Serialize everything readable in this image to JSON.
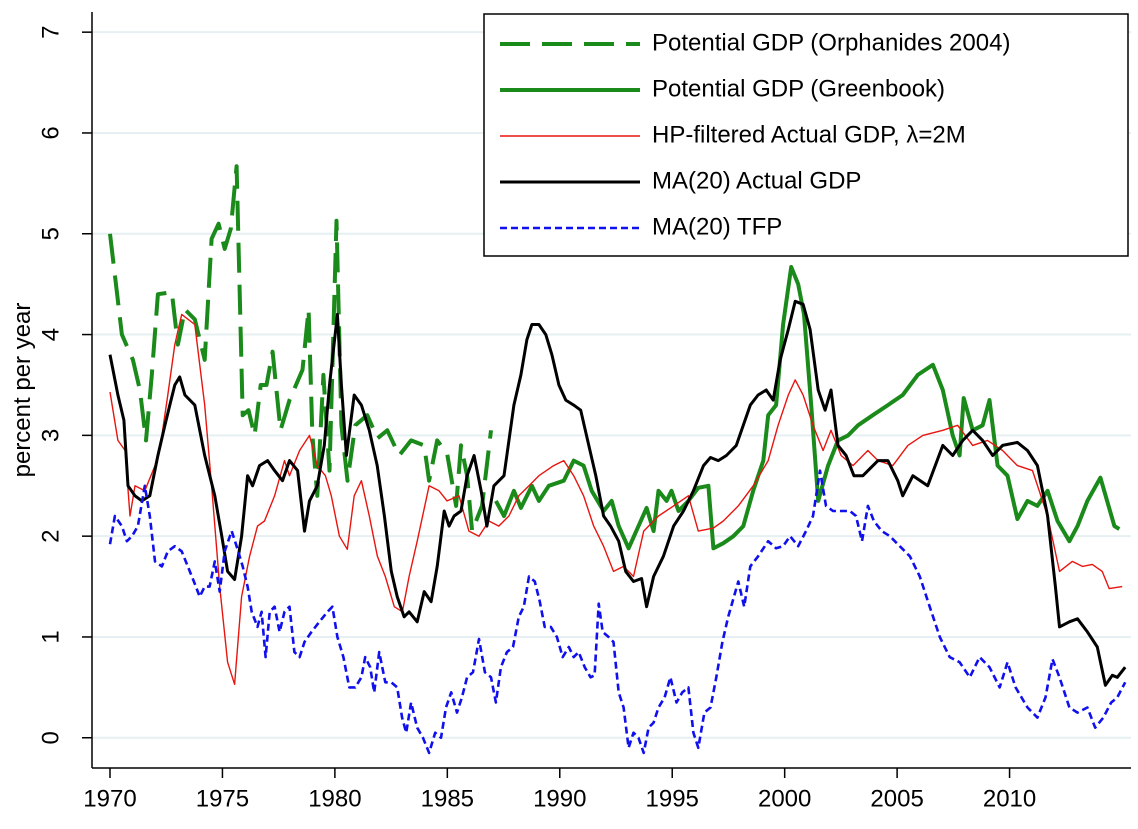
{
  "chart_data": {
    "type": "line",
    "y_label": "percent per year",
    "xlim": [
      1969.2,
      2015.4
    ],
    "xticks": [
      1970,
      1975,
      1980,
      1985,
      1990,
      1995,
      2000,
      2005,
      2010
    ],
    "ylim": [
      -0.3,
      7.2
    ],
    "yticks": [
      0,
      1,
      2,
      3,
      4,
      5,
      6,
      7
    ],
    "grid": true,
    "legend": "upper right",
    "series": [
      {
        "name": "Potential GDP (Orphanides 2004)",
        "color": "#1a8a1a",
        "x": [
          1970.0,
          1970.53,
          1971.02,
          1971.33,
          1971.6,
          1971.86,
          1972.13,
          1972.75,
          1973.02,
          1973.33,
          1973.77,
          1974.21,
          1974.52,
          1974.83,
          1975.1,
          1975.37,
          1975.63,
          1975.9,
          1976.16,
          1976.43,
          1976.7,
          1976.96,
          1977.23,
          1977.58,
          1977.98,
          1978.56,
          1978.83,
          1979.0,
          1979.22,
          1979.49,
          1979.76,
          1980.07,
          1980.29,
          1980.56,
          1980.91,
          1981.44,
          1981.89,
          1982.33,
          1982.86,
          1983.39,
          1983.97,
          1984.19,
          1984.55,
          1984.99,
          1985.39,
          1985.61,
          1985.88,
          1986.1,
          1986.54,
          1986.94
        ],
        "values": [
          5.0,
          4.0,
          3.75,
          3.45,
          2.95,
          3.6,
          4.4,
          4.42,
          3.9,
          4.25,
          4.15,
          3.75,
          4.95,
          5.1,
          4.85,
          5.05,
          5.67,
          3.2,
          3.25,
          3.0,
          3.5,
          3.5,
          3.83,
          3.05,
          3.35,
          3.65,
          4.25,
          3.0,
          2.4,
          3.6,
          2.65,
          5.13,
          3.1,
          2.55,
          3.1,
          3.2,
          2.97,
          3.05,
          2.8,
          2.95,
          2.9,
          2.55,
          2.95,
          2.82,
          2.3,
          2.9,
          2.6,
          2.05,
          2.3,
          3.05
        ]
      },
      {
        "name": "Potential GDP (Greenbook)",
        "color": "#1a8a1a",
        "x": [
          1987.16,
          1987.52,
          1987.96,
          1988.27,
          1988.76,
          1989.07,
          1989.51,
          1990.18,
          1990.62,
          1991.06,
          1991.42,
          1991.95,
          1992.31,
          1992.62,
          1993.06,
          1993.5,
          1993.86,
          1994.17,
          1994.39,
          1994.75,
          1994.97,
          1995.28,
          1995.72,
          1996.16,
          1996.61,
          1996.83,
          1997.27,
          1997.72,
          1998.16,
          1998.6,
          1999.05,
          1999.27,
          1999.62,
          1999.93,
          2000.29,
          2000.6,
          2000.86,
          2001.18,
          2001.49,
          2001.93,
          2002.37,
          2002.82,
          2003.26,
          2003.92,
          2004.59,
          2005.25,
          2005.92,
          2006.59,
          2007.03,
          2007.47,
          2007.78,
          2007.96,
          2008.36,
          2008.8,
          2009.11,
          2009.47,
          2009.91,
          2010.35,
          2010.8,
          2011.24,
          2011.69,
          2012.13,
          2012.66,
          2013.02,
          2013.46,
          2014.04,
          2014.66,
          2014.88
        ],
        "values": [
          2.35,
          2.2,
          2.45,
          2.28,
          2.5,
          2.35,
          2.5,
          2.55,
          2.75,
          2.7,
          2.45,
          2.25,
          2.35,
          2.1,
          1.88,
          2.1,
          2.28,
          2.05,
          2.45,
          2.35,
          2.45,
          2.25,
          2.35,
          2.48,
          2.5,
          1.88,
          1.93,
          2.0,
          2.1,
          2.45,
          2.75,
          3.2,
          3.3,
          4.1,
          4.67,
          4.5,
          4.2,
          3.3,
          2.35,
          2.7,
          2.95,
          3.0,
          3.1,
          3.2,
          3.3,
          3.4,
          3.6,
          3.7,
          3.45,
          3.0,
          2.8,
          3.37,
          3.05,
          3.1,
          3.35,
          2.7,
          2.6,
          2.17,
          2.35,
          2.3,
          2.45,
          2.15,
          1.95,
          2.1,
          2.35,
          2.58,
          2.1,
          2.07
        ]
      },
      {
        "name": "HP-filtered Actual GDP, λ=2M",
        "color": "#e8150f",
        "x": [
          1970.0,
          1970.35,
          1970.67,
          1970.89,
          1971.11,
          1971.55,
          1972.0,
          1972.31,
          1972.57,
          1972.88,
          1973.19,
          1973.77,
          1974.21,
          1974.52,
          1974.88,
          1975.23,
          1975.54,
          1975.85,
          1976.21,
          1976.56,
          1976.87,
          1977.32,
          1977.76,
          1977.98,
          1978.43,
          1978.87,
          1979.22,
          1979.58,
          1979.84,
          1980.2,
          1980.55,
          1980.86,
          1981.18,
          1981.53,
          1981.89,
          1982.24,
          1982.64,
          1983.0,
          1983.3,
          1983.66,
          1984.19,
          1984.63,
          1984.99,
          1985.52,
          1985.96,
          1986.41,
          1986.85,
          1987.29,
          1987.74,
          1988.18,
          1988.63,
          1989.07,
          1989.73,
          1990.18,
          1990.62,
          1991.06,
          1991.51,
          1991.95,
          1992.39,
          1992.84,
          1993.28,
          1993.73,
          1994.39,
          1995.06,
          1995.72,
          1996.16,
          1996.83,
          1997.27,
          1997.94,
          1998.6,
          1999.27,
          1999.71,
          2000.16,
          2000.47,
          2000.82,
          2001.26,
          2001.71,
          2002.06,
          2002.51,
          2003.04,
          2003.7,
          2004.15,
          2004.81,
          2005.48,
          2006.14,
          2007.03,
          2007.69,
          2008.36,
          2009.02,
          2009.69,
          2010.35,
          2011.02,
          2011.69,
          2012.22,
          2012.79,
          2013.24,
          2013.68,
          2014.12,
          2014.43,
          2015.01
        ],
        "values": [
          3.43,
          2.95,
          2.85,
          2.2,
          2.5,
          2.45,
          2.7,
          3.0,
          3.4,
          3.9,
          4.2,
          4.1,
          3.3,
          2.5,
          1.5,
          0.75,
          0.53,
          1.4,
          1.8,
          2.1,
          2.15,
          2.4,
          2.75,
          2.6,
          2.85,
          3.0,
          2.7,
          2.6,
          2.4,
          2.0,
          1.87,
          2.4,
          2.55,
          2.2,
          1.8,
          1.6,
          1.3,
          1.25,
          1.6,
          1.95,
          2.5,
          2.45,
          2.35,
          2.4,
          2.05,
          2.0,
          2.15,
          2.1,
          2.2,
          2.4,
          2.5,
          2.6,
          2.7,
          2.75,
          2.6,
          2.4,
          2.1,
          1.9,
          1.65,
          1.7,
          1.6,
          2.05,
          2.2,
          2.3,
          2.4,
          2.05,
          2.08,
          2.15,
          2.3,
          2.5,
          2.75,
          3.1,
          3.4,
          3.55,
          3.4,
          3.1,
          2.85,
          3.05,
          2.8,
          2.7,
          2.85,
          2.75,
          2.7,
          2.9,
          3.0,
          3.05,
          3.1,
          2.9,
          2.95,
          2.85,
          2.7,
          2.65,
          2.2,
          1.65,
          1.75,
          1.7,
          1.72,
          1.65,
          1.48,
          1.5
        ]
      },
      {
        "name": "MA(20) Actual GDP",
        "color": "#000000",
        "x": [
          1970.0,
          1970.35,
          1970.62,
          1970.8,
          1971.11,
          1971.42,
          1971.77,
          1972.13,
          1972.44,
          1972.66,
          1972.88,
          1973.1,
          1973.33,
          1973.77,
          1974.21,
          1974.66,
          1974.97,
          1975.23,
          1975.54,
          1975.85,
          1976.12,
          1976.34,
          1976.65,
          1977.01,
          1977.32,
          1977.67,
          1977.98,
          1978.34,
          1978.65,
          1978.87,
          1979.22,
          1979.53,
          1979.76,
          1980.11,
          1980.29,
          1980.51,
          1980.86,
          1981.18,
          1981.53,
          1981.88,
          1982.2,
          1982.51,
          1982.77,
          1983.08,
          1983.3,
          1983.66,
          1983.97,
          1984.28,
          1984.55,
          1984.86,
          1985.08,
          1985.3,
          1985.61,
          1985.88,
          1986.19,
          1986.5,
          1986.76,
          1987.07,
          1987.52,
          1987.96,
          1988.27,
          1988.54,
          1988.76,
          1989.07,
          1989.38,
          1989.65,
          1989.96,
          1990.27,
          1990.62,
          1990.93,
          1991.29,
          1991.6,
          1991.95,
          1992.26,
          1992.62,
          1992.93,
          1993.28,
          1993.64,
          1993.86,
          1994.17,
          1994.61,
          1995.06,
          1995.5,
          1995.94,
          1996.39,
          1996.7,
          1997.05,
          1997.41,
          1997.85,
          1998.16,
          1998.47,
          1998.82,
          1999.18,
          1999.49,
          1999.8,
          2000.16,
          2000.47,
          2000.82,
          2001.13,
          2001.49,
          2001.8,
          2002.06,
          2002.37,
          2002.73,
          2003.08,
          2003.48,
          2004.15,
          2004.59,
          2005.03,
          2005.25,
          2005.7,
          2006.36,
          2007.03,
          2007.47,
          2007.92,
          2008.36,
          2008.8,
          2009.25,
          2009.69,
          2010.35,
          2010.8,
          2011.24,
          2011.69,
          2012.04,
          2012.22,
          2012.66,
          2013.02,
          2013.46,
          2013.9,
          2014.26,
          2014.57,
          2014.79,
          2015.14
        ],
        "values": [
          3.8,
          3.4,
          3.15,
          2.5,
          2.4,
          2.35,
          2.4,
          2.8,
          3.1,
          3.3,
          3.5,
          3.58,
          3.4,
          3.3,
          2.8,
          2.4,
          2.0,
          1.65,
          1.57,
          2.0,
          2.6,
          2.5,
          2.7,
          2.75,
          2.65,
          2.55,
          2.75,
          2.65,
          2.05,
          2.35,
          2.5,
          2.9,
          3.5,
          4.2,
          3.5,
          2.8,
          3.4,
          3.3,
          3.05,
          2.7,
          2.2,
          1.65,
          1.4,
          1.2,
          1.25,
          1.15,
          1.45,
          1.35,
          1.7,
          2.25,
          2.1,
          2.2,
          2.25,
          2.6,
          2.8,
          2.45,
          2.1,
          2.5,
          2.6,
          3.3,
          3.6,
          3.95,
          4.1,
          4.1,
          4.0,
          3.8,
          3.5,
          3.35,
          3.3,
          3.25,
          2.9,
          2.6,
          2.2,
          2.1,
          1.95,
          1.65,
          1.55,
          1.58,
          1.3,
          1.6,
          1.8,
          2.1,
          2.25,
          2.45,
          2.7,
          2.78,
          2.75,
          2.8,
          2.9,
          3.1,
          3.3,
          3.4,
          3.45,
          3.35,
          3.75,
          4.05,
          4.33,
          4.3,
          4.05,
          3.45,
          3.25,
          3.45,
          2.9,
          2.8,
          2.6,
          2.6,
          2.75,
          2.75,
          2.55,
          2.4,
          2.6,
          2.5,
          2.9,
          2.8,
          2.95,
          3.05,
          2.95,
          2.8,
          2.9,
          2.93,
          2.85,
          2.7,
          2.2,
          1.5,
          1.1,
          1.15,
          1.18,
          1.05,
          0.9,
          0.52,
          0.62,
          0.6,
          0.7
        ]
      },
      {
        "name": "MA(20) TFP",
        "color": "#1010ee",
        "x": [
          1970.0,
          1970.22,
          1970.53,
          1970.75,
          1970.98,
          1971.24,
          1971.55,
          1971.77,
          1972.0,
          1972.31,
          1972.57,
          1972.88,
          1973.19,
          1973.46,
          1973.73,
          1973.99,
          1974.21,
          1974.43,
          1974.66,
          1974.88,
          1975.1,
          1975.41,
          1975.63,
          1975.9,
          1976.12,
          1976.3,
          1976.56,
          1976.74,
          1976.92,
          1977.1,
          1977.32,
          1977.54,
          1977.76,
          1977.98,
          1978.2,
          1978.43,
          1978.65,
          1978.96,
          1979.31,
          1979.67,
          1979.89,
          1980.11,
          1980.38,
          1980.64,
          1980.91,
          1981.18,
          1981.35,
          1981.57,
          1981.75,
          1981.97,
          1982.24,
          1982.51,
          1982.77,
          1982.99,
          1983.17,
          1983.39,
          1983.66,
          1983.92,
          1984.19,
          1984.46,
          1984.72,
          1984.94,
          1985.17,
          1985.43,
          1985.65,
          1985.88,
          1986.14,
          1986.41,
          1986.67,
          1986.94,
          1987.16,
          1987.38,
          1987.65,
          1987.92,
          1988.18,
          1988.4,
          1988.63,
          1988.89,
          1989.11,
          1989.33,
          1989.6,
          1989.87,
          1990.13,
          1990.4,
          1990.62,
          1990.84,
          1991.11,
          1991.37,
          1991.55,
          1991.73,
          1991.91,
          1992.17,
          1992.39,
          1992.62,
          1992.84,
          1993.06,
          1993.28,
          1993.5,
          1993.73,
          1993.95,
          1994.17,
          1994.39,
          1994.66,
          1994.92,
          1995.19,
          1995.45,
          1995.72,
          1995.94,
          1996.16,
          1996.43,
          1996.7,
          1996.96,
          1997.23,
          1997.49,
          1997.94,
          1998.2,
          1998.47,
          1998.82,
          1999.27,
          1999.62,
          1999.93,
          2000.24,
          2000.6,
          2000.95,
          2001.26,
          2001.57,
          2001.84,
          2002.15,
          2002.59,
          2002.9,
          2003.17,
          2003.44,
          2003.7,
          2003.97,
          2004.32,
          2004.68,
          2005.12,
          2005.57,
          2006.01,
          2006.45,
          2006.9,
          2007.34,
          2007.78,
          2008.23,
          2008.67,
          2009.11,
          2009.56,
          2009.91,
          2010.27,
          2010.8,
          2011.24,
          2011.6,
          2011.91,
          2012.22,
          2012.66,
          2013.02,
          2013.46,
          2013.81,
          2014.17,
          2014.52,
          2014.79,
          2015.14
        ],
        "values": [
          1.92,
          2.2,
          2.1,
          1.95,
          2.0,
          2.1,
          2.5,
          2.2,
          1.75,
          1.7,
          1.85,
          1.9,
          1.85,
          1.7,
          1.55,
          1.4,
          1.5,
          1.5,
          1.75,
          1.45,
          1.85,
          2.05,
          1.9,
          1.7,
          1.5,
          1.25,
          1.1,
          1.25,
          0.8,
          1.25,
          1.3,
          1.05,
          1.25,
          1.3,
          0.85,
          0.8,
          0.95,
          1.05,
          1.15,
          1.25,
          1.3,
          1.0,
          0.8,
          0.5,
          0.5,
          0.6,
          0.8,
          0.7,
          0.45,
          0.85,
          0.55,
          0.55,
          0.5,
          0.2,
          0.05,
          0.35,
          0.1,
          0.0,
          -0.15,
          0.05,
          0.0,
          0.3,
          0.45,
          0.25,
          0.4,
          0.6,
          0.65,
          0.98,
          0.65,
          0.6,
          0.35,
          0.7,
          0.85,
          0.9,
          1.2,
          1.3,
          1.6,
          1.55,
          1.35,
          1.1,
          1.1,
          1.0,
          0.8,
          0.9,
          0.8,
          0.85,
          0.7,
          0.6,
          0.62,
          1.33,
          1.05,
          1.0,
          0.95,
          0.45,
          0.3,
          -0.1,
          0.05,
          0.0,
          -0.15,
          0.1,
          0.15,
          0.3,
          0.4,
          0.6,
          0.35,
          0.45,
          0.5,
          0.05,
          -0.1,
          0.25,
          0.3,
          0.6,
          0.95,
          1.2,
          1.55,
          1.3,
          1.7,
          1.8,
          1.95,
          1.88,
          1.9,
          2.0,
          1.9,
          2.05,
          2.2,
          2.65,
          2.3,
          2.25,
          2.25,
          2.25,
          2.2,
          1.95,
          2.3,
          2.15,
          2.05,
          2.0,
          1.9,
          1.8,
          1.6,
          1.3,
          1.0,
          0.8,
          0.75,
          0.6,
          0.8,
          0.7,
          0.5,
          0.75,
          0.5,
          0.3,
          0.2,
          0.4,
          0.78,
          0.6,
          0.3,
          0.25,
          0.3,
          0.1,
          0.2,
          0.35,
          0.4,
          0.55
        ]
      }
    ]
  }
}
